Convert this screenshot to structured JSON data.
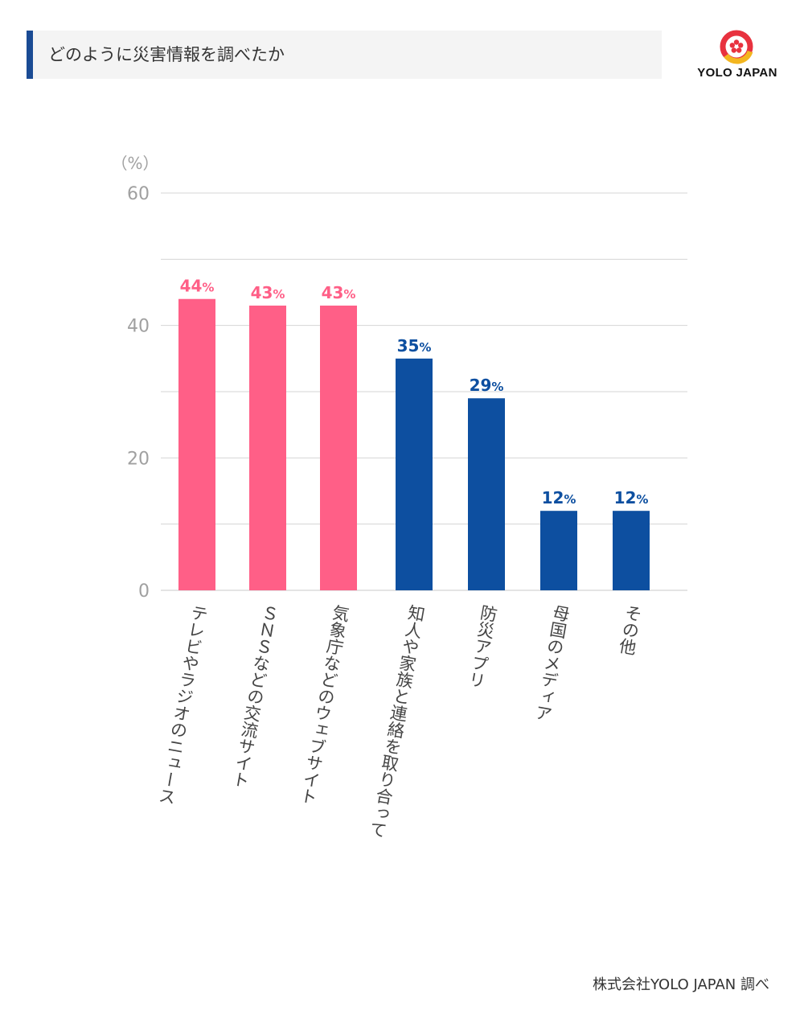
{
  "header": {
    "title": "どのように災害情報を調べたか"
  },
  "logo": {
    "text": "YOLO JAPAN",
    "ring_color": "#e8323f",
    "accent_color": "#f3b61f"
  },
  "footer": {
    "source": "株式会社YOLO JAPAN 調べ"
  },
  "colors": {
    "pink": "#ff5f87",
    "blue": "#0d4fa0",
    "axis_text": "#a0a0a0",
    "grid": "#d4d4d4"
  },
  "chart_data": {
    "type": "bar",
    "unit_label": "（%）",
    "ylim": [
      0,
      60
    ],
    "yticks": [
      0,
      20,
      40,
      60
    ],
    "grid": true,
    "value_suffix": "%",
    "categories": [
      "テレビやラジオのニュース",
      "ＳＮＳなどの交流サイト",
      "気象庁などのウェブサイト",
      "知人や家族と連絡を取り合って",
      "防災アプリ",
      "母国のメディア",
      "その他"
    ],
    "values": [
      44,
      43,
      43,
      35,
      29,
      12,
      12
    ],
    "bar_colors": [
      "#ff5f87",
      "#ff5f87",
      "#ff5f87",
      "#0d4fa0",
      "#0d4fa0",
      "#0d4fa0",
      "#0d4fa0"
    ]
  }
}
